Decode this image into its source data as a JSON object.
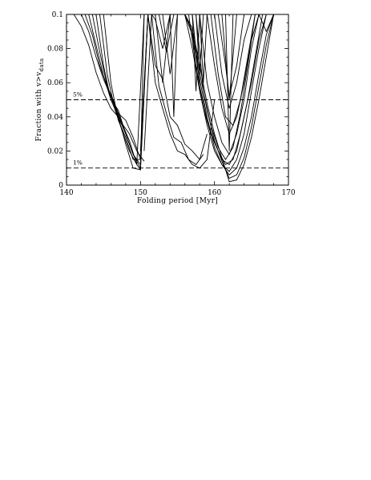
{
  "chart_data": {
    "type": "line",
    "title": "",
    "xlabel": "Folding period [Myr]",
    "ylabel_main": "Fraction with v>v",
    "ylabel_sub": "data",
    "xlim": [
      140,
      170
    ],
    "ylim": [
      0,
      0.1
    ],
    "x_ticks": [
      140,
      150,
      160,
      170
    ],
    "x_tick_labels": [
      "140",
      "150",
      "160",
      "170"
    ],
    "y_ticks": [
      0,
      0.02,
      0.04,
      0.06,
      0.08,
      0.1
    ],
    "y_tick_labels": [
      "0",
      "0.02",
      "0.04",
      "0.06",
      "0.08",
      "0.1"
    ],
    "grid": false,
    "legend": "none",
    "reference_lines": [
      {
        "y": 0.05,
        "label": "5%",
        "style": "dashed"
      },
      {
        "y": 0.01,
        "label": "1%",
        "style": "dashed"
      }
    ],
    "series": [
      {
        "x": [
          141,
          142,
          143,
          144,
          145,
          146,
          147,
          148,
          149,
          150
        ],
        "y": [
          0.1,
          0.093,
          0.082,
          0.066,
          0.054,
          0.045,
          0.04,
          0.03,
          0.018,
          0.012
        ]
      },
      {
        "x": [
          142,
          143,
          144,
          145,
          146,
          147,
          148,
          149,
          150,
          151
        ],
        "y": [
          0.1,
          0.09,
          0.075,
          0.062,
          0.052,
          0.042,
          0.038,
          0.028,
          0.015,
          0.1
        ]
      },
      {
        "x": [
          142.5,
          143.5,
          144.5,
          145.5,
          146.5,
          147.5,
          148.5,
          149.5,
          150.5
        ],
        "y": [
          0.1,
          0.088,
          0.07,
          0.058,
          0.046,
          0.036,
          0.03,
          0.02,
          0.014
        ]
      },
      {
        "x": [
          143,
          144,
          145,
          146,
          147,
          148,
          149,
          150,
          150.5
        ],
        "y": [
          0.1,
          0.082,
          0.064,
          0.05,
          0.044,
          0.03,
          0.018,
          0.01,
          0.1
        ]
      },
      {
        "x": [
          143.5,
          144.5,
          145.5,
          146.5,
          147.5,
          148.5,
          149.5,
          150.5
        ],
        "y": [
          0.1,
          0.078,
          0.058,
          0.048,
          0.036,
          0.026,
          0.012,
          0.1
        ]
      },
      {
        "x": [
          144,
          145,
          146,
          147,
          148,
          149,
          150,
          151
        ],
        "y": [
          0.1,
          0.07,
          0.05,
          0.04,
          0.024,
          0.01,
          0.009,
          0.1
        ]
      },
      {
        "x": [
          144.5,
          145.5,
          146.5,
          147.5,
          148.5,
          149.5,
          150,
          151
        ],
        "y": [
          0.1,
          0.065,
          0.045,
          0.032,
          0.02,
          0.012,
          0.009,
          0.1
        ]
      },
      {
        "x": [
          145,
          146,
          147,
          148,
          149,
          150
        ],
        "y": [
          0.1,
          0.06,
          0.038,
          0.028,
          0.015,
          0.015
        ]
      },
      {
        "x": [
          150,
          151,
          152,
          153,
          154,
          155,
          156,
          157,
          158,
          159,
          160
        ],
        "y": [
          0.02,
          0.1,
          0.06,
          0.045,
          0.03,
          0.02,
          0.018,
          0.012,
          0.01,
          0.015,
          0.05
        ]
      },
      {
        "x": [
          150.5,
          151.5,
          152.5,
          153.5,
          154.5,
          155.5,
          156.5,
          157.5,
          158.5
        ],
        "y": [
          0.02,
          0.1,
          0.058,
          0.042,
          0.028,
          0.025,
          0.015,
          0.012,
          0.018
        ]
      },
      {
        "x": [
          151,
          152,
          153,
          154,
          155,
          156,
          157,
          158,
          159
        ],
        "y": [
          0.1,
          0.07,
          0.062,
          0.04,
          0.035,
          0.024,
          0.02,
          0.015,
          0.03
        ]
      },
      {
        "x": [
          151.5,
          152,
          153,
          154
        ],
        "y": [
          0.1,
          0.097,
          0.08,
          0.1
        ]
      },
      {
        "x": [
          152,
          153,
          154
        ],
        "y": [
          0.1,
          0.06,
          0.1
        ]
      },
      {
        "x": [
          153,
          154,
          155
        ],
        "y": [
          0.1,
          0.065,
          0.1
        ]
      },
      {
        "x": [
          152.5,
          153.5,
          154.5
        ],
        "y": [
          0.1,
          0.078,
          0.1
        ]
      },
      {
        "x": [
          154,
          154.5,
          155
        ],
        "y": [
          0.1,
          0.04,
          0.1
        ]
      },
      {
        "x": [
          157,
          157.5,
          158
        ],
        "y": [
          0.1,
          0.055,
          0.1
        ]
      },
      {
        "x": [
          157.5,
          158,
          158.5
        ],
        "y": [
          0.1,
          0.065,
          0.1
        ]
      },
      {
        "x": [
          158,
          158.5,
          159
        ],
        "y": [
          0.1,
          0.06,
          0.1
        ]
      },
      {
        "x": [
          160,
          161,
          162,
          163,
          164,
          165
        ],
        "y": [
          0.1,
          0.065,
          0.045,
          0.06,
          0.085,
          0.1
        ]
      },
      {
        "x": [
          160.5,
          161.5,
          162,
          163,
          164
        ],
        "y": [
          0.1,
          0.07,
          0.052,
          0.07,
          0.1
        ]
      },
      {
        "x": [
          161,
          162,
          163
        ],
        "y": [
          0.1,
          0.05,
          0.1
        ]
      },
      {
        "x": [
          161.5,
          162,
          162.5
        ],
        "y": [
          0.1,
          0.02,
          0.1
        ]
      },
      {
        "x": [
          158,
          159,
          160,
          161,
          162,
          163,
          164,
          165,
          166
        ],
        "y": [
          0.1,
          0.06,
          0.04,
          0.025,
          0.018,
          0.03,
          0.05,
          0.08,
          0.1
        ]
      },
      {
        "x": [
          157.5,
          158.5,
          159.5,
          160.5,
          161.5,
          162.5,
          163.5,
          164.5,
          165.5
        ],
        "y": [
          0.1,
          0.055,
          0.035,
          0.022,
          0.015,
          0.022,
          0.042,
          0.07,
          0.1
        ]
      },
      {
        "x": [
          157,
          158,
          159,
          160,
          161,
          162,
          163,
          164,
          165,
          166,
          167
        ],
        "y": [
          0.1,
          0.058,
          0.038,
          0.025,
          0.015,
          0.012,
          0.02,
          0.04,
          0.06,
          0.085,
          0.1
        ]
      },
      {
        "x": [
          156.5,
          157.5,
          158.5,
          159.5,
          160.5,
          161.5,
          162.5,
          163.5,
          164.5,
          165.5,
          166.5
        ],
        "y": [
          0.1,
          0.07,
          0.045,
          0.03,
          0.02,
          0.012,
          0.015,
          0.03,
          0.05,
          0.075,
          0.1
        ]
      },
      {
        "x": [
          156,
          157,
          158,
          159,
          160,
          161,
          162,
          163,
          164,
          165,
          166,
          167
        ],
        "y": [
          0.1,
          0.08,
          0.055,
          0.035,
          0.02,
          0.012,
          0.008,
          0.015,
          0.03,
          0.055,
          0.08,
          0.1
        ]
      },
      {
        "x": [
          156,
          157,
          158,
          159,
          160,
          161,
          162,
          163,
          164,
          165,
          166,
          167,
          168
        ],
        "y": [
          0.1,
          0.088,
          0.062,
          0.04,
          0.022,
          0.012,
          0.006,
          0.01,
          0.022,
          0.04,
          0.065,
          0.088,
          0.1
        ]
      },
      {
        "x": [
          156,
          157,
          158,
          159,
          160,
          161,
          162,
          163,
          164,
          165,
          166,
          167,
          168
        ],
        "y": [
          0.1,
          0.09,
          0.066,
          0.044,
          0.026,
          0.014,
          0.004,
          0.006,
          0.016,
          0.034,
          0.058,
          0.082,
          0.1
        ]
      },
      {
        "x": [
          156,
          157,
          158,
          159,
          160,
          161,
          162,
          163,
          164,
          165,
          166,
          167,
          168
        ],
        "y": [
          0.1,
          0.092,
          0.07,
          0.048,
          0.03,
          0.016,
          0.002,
          0.003,
          0.012,
          0.028,
          0.05,
          0.075,
          0.1
        ]
      },
      {
        "x": [
          159,
          160,
          161,
          162,
          163,
          164,
          165,
          166
        ],
        "y": [
          0.1,
          0.07,
          0.045,
          0.03,
          0.04,
          0.06,
          0.085,
          0.1
        ]
      },
      {
        "x": [
          159.5,
          160.5,
          161.5,
          162.5,
          163.5,
          164.5,
          165.5
        ],
        "y": [
          0.1,
          0.065,
          0.04,
          0.035,
          0.05,
          0.075,
          0.1
        ]
      },
      {
        "x": [
          166,
          167,
          168
        ],
        "y": [
          0.1,
          0.09,
          0.1
        ]
      }
    ]
  }
}
